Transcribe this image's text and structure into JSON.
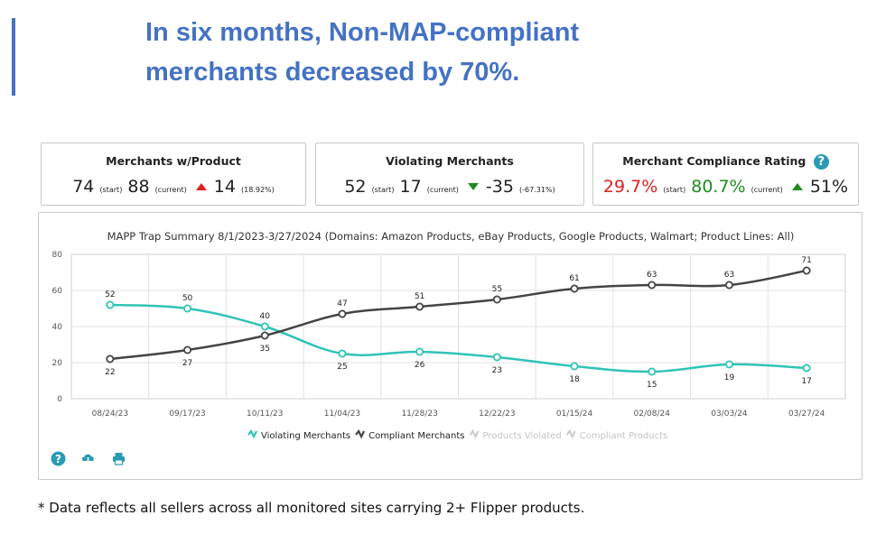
{
  "headline": {
    "line1": "In six months, Non-MAP-compliant",
    "line2": "merchants decreased by 70%."
  },
  "kpis": {
    "merchants": {
      "title": "Merchants w/Product",
      "start": "74",
      "start_tag": "(start)",
      "current": "88",
      "current_tag": "(current)",
      "change": "14",
      "change_pct": "(18.92%)",
      "trend": "up"
    },
    "violating": {
      "title": "Violating Merchants",
      "start": "52",
      "start_tag": "(start)",
      "current": "17",
      "current_tag": "(current)",
      "change": "-35",
      "change_pct": "(-67.31%)",
      "trend": "down"
    },
    "compliance": {
      "title": "Merchant Compliance Rating",
      "start": "29.7%",
      "start_tag": "(start)",
      "current": "80.7%",
      "current_tag": "(current)",
      "change": "51%",
      "trend": "up",
      "help_icon": "help-icon"
    }
  },
  "colors": {
    "accent": "#4472c4",
    "violating": "#2ec4b6",
    "compliant": "#444444",
    "legend_disabled": "#cccccc",
    "start_red": "#e02020",
    "current_green": "#1e8c1e"
  },
  "chart_data": {
    "type": "line",
    "title": "MAPP Trap Summary 8/1/2023-3/27/2024 (Domains: Amazon Products, eBay Products, Google Products, Walmart; Product Lines: All)",
    "categories": [
      "08/24/23",
      "09/17/23",
      "10/11/23",
      "11/04/23",
      "11/28/23",
      "12/22/23",
      "01/15/24",
      "02/08/24",
      "03/03/24",
      "03/27/24"
    ],
    "ylim": [
      0,
      80
    ],
    "yticks": [
      0,
      20,
      40,
      60,
      80
    ],
    "grid": true,
    "series": [
      {
        "name": "Violating Merchants",
        "values": [
          52,
          50,
          40,
          25,
          26,
          23,
          18,
          15,
          19,
          17
        ]
      },
      {
        "name": "Compliant Merchants",
        "values": [
          22,
          27,
          35,
          47,
          51,
          55,
          61,
          63,
          63,
          71
        ]
      }
    ],
    "legend": {
      "placement": "bottom",
      "items": [
        {
          "label": "Violating Merchants",
          "active": true
        },
        {
          "label": "Compliant Merchants",
          "active": true
        },
        {
          "label": "Products Violated",
          "active": false
        },
        {
          "label": "Compliant Products",
          "active": false
        }
      ]
    }
  },
  "toolbar": {
    "icons": [
      "help-icon",
      "cloud-download-icon",
      "print-icon"
    ]
  },
  "footnote": "* Data reflects all sellers across all monitored sites carrying 2+ Flipper products."
}
